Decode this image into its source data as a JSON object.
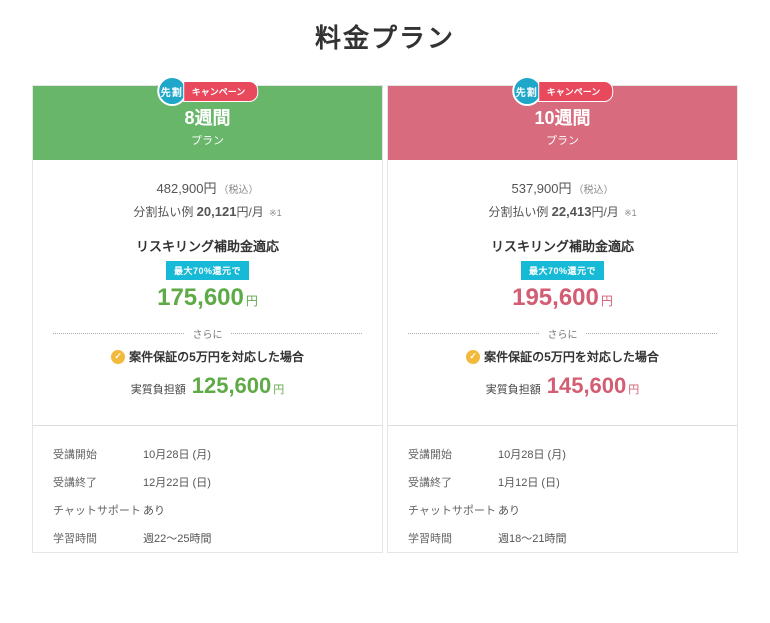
{
  "title": "料金プラン",
  "badges": {
    "senwari": "先割",
    "campaign": "キャンペーン"
  },
  "refund_badge": "最大70%還元で",
  "divider_text": "さらに",
  "guarantee_text": "案件保証の5万円を対応した場合",
  "net_label": "実質負担額",
  "yen": "円",
  "tax_incl": "（税込）",
  "installment_prefix": "分割払い例",
  "installment_suffix": "円/月",
  "installment_note": "※1",
  "subsidy_title": "リスキリング補助金適応",
  "details_keys": {
    "start": "受講開始",
    "end": "受講終了",
    "chat": "チャットサポート",
    "hours": "学習時間"
  },
  "plans": [
    {
      "header_class": "plan-header-green",
      "accent_class": "subsidy-green",
      "duration": "8週間",
      "plan_label": "プラン",
      "original_price": "482,900円",
      "installment_amount": "20,121",
      "subsidy_price": "175,600",
      "net_price": "125,600",
      "start": "10月28日 (月)",
      "end": "12月22日 (日)",
      "chat": "あり",
      "hours": "週22～25時間"
    },
    {
      "header_class": "plan-header-pink",
      "accent_class": "subsidy-pink",
      "duration": "10週間",
      "plan_label": "プラン",
      "original_price": "537,900円",
      "installment_amount": "22,413",
      "subsidy_price": "195,600",
      "net_price": "145,600",
      "start": "10月28日 (月)",
      "end": "1月12日 (日)",
      "chat": "あり",
      "hours": "週18～21時間"
    }
  ]
}
